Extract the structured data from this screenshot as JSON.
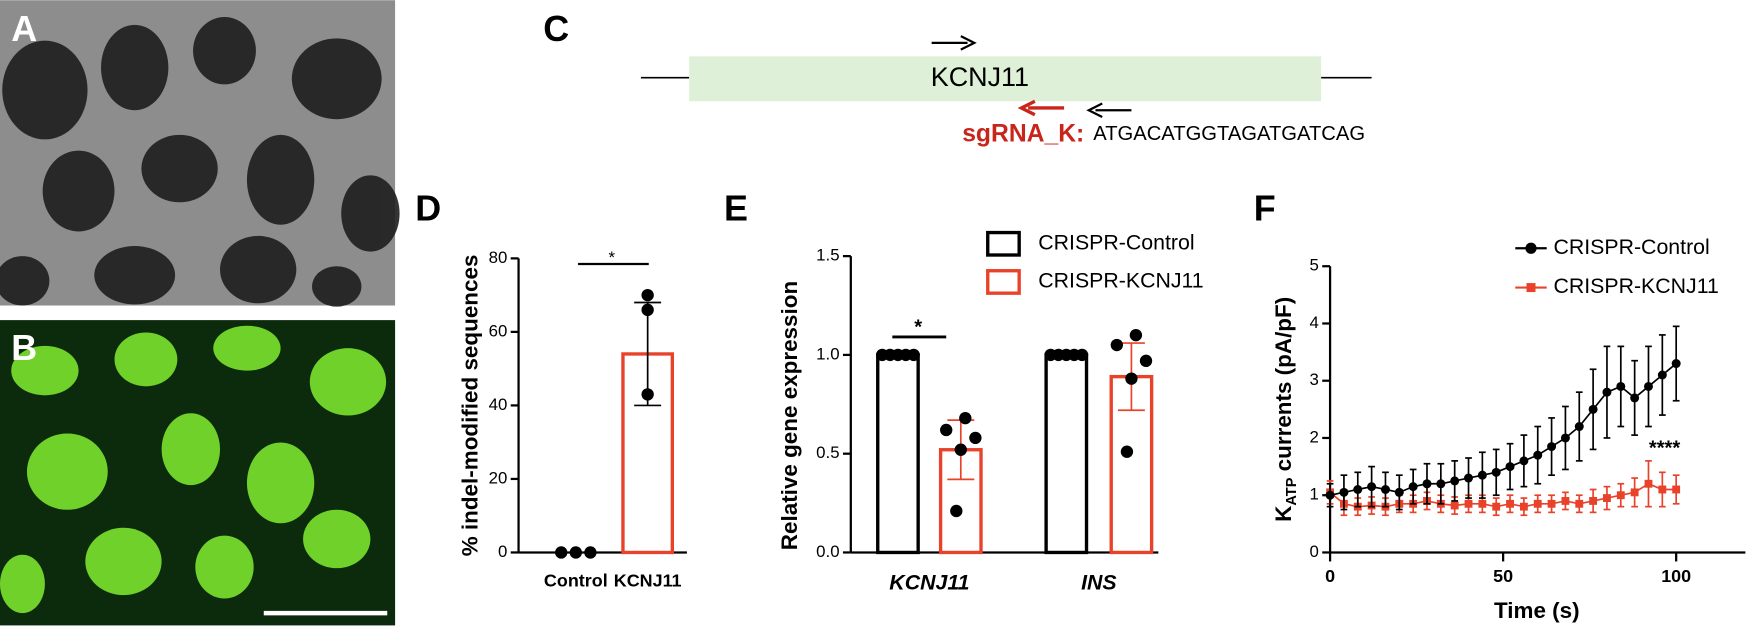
{
  "panel_labels": [
    "A",
    "B",
    "C",
    "D",
    "E",
    "F"
  ],
  "diagram": {
    "gene": "KCNJ11",
    "guide_label": "sgRNA_K:",
    "sequence": "ATGACATGGTAGATGATCAG"
  },
  "chart_data": [
    {
      "type": "bar",
      "ylabel": "% indel-modified sequences",
      "categories": [
        "Control",
        "KCNJ11"
      ],
      "values": [
        0,
        54
      ],
      "errors": [
        0,
        14
      ],
      "points": [
        [
          0,
          0,
          0
        ],
        [
          70,
          66,
          43
        ]
      ],
      "colors": [
        "#000000",
        "#e8432a"
      ],
      "ylim": [
        0,
        80
      ],
      "yticks": [
        0,
        20,
        40,
        60,
        80
      ],
      "annotation": "*"
    },
    {
      "type": "grouped_bar",
      "ylabel": "Relative gene expression",
      "categories": [
        "KCNJ11",
        "INS"
      ],
      "series": [
        {
          "name": "CRISPR-Control",
          "color": "#000000",
          "values": [
            1.0,
            1.0
          ],
          "errors": [
            0,
            0
          ],
          "points": [
            [
              1,
              1,
              1,
              1,
              1
            ],
            [
              1,
              1,
              1,
              1,
              1
            ]
          ]
        },
        {
          "name": "CRISPR-KCNJ11",
          "color": "#e8432a",
          "values": [
            0.52,
            0.89
          ],
          "errors": [
            0.15,
            0.17
          ],
          "points": [
            [
              0.68,
              0.62,
              0.58,
              0.52,
              0.21
            ],
            [
              1.1,
              1.05,
              0.97,
              0.88,
              0.51
            ]
          ]
        }
      ],
      "ylim": [
        0,
        1.5
      ],
      "yticks": [
        {
          "value": 0,
          "label": "0.0"
        },
        {
          "value": 0.5,
          "label": "0.5"
        },
        {
          "value": 1,
          "label": "1.0"
        },
        {
          "value": 1.5,
          "label": "1.5"
        }
      ],
      "annotation": "*"
    },
    {
      "type": "line",
      "xlabel": "Time (s)",
      "ylabel_main": "K",
      "ylabel_sub": "ATP",
      "ylabel_rest": " currents (pA/pF)",
      "x": [
        0,
        4,
        8,
        12,
        16,
        20,
        24,
        28,
        32,
        36,
        40,
        44,
        48,
        52,
        56,
        60,
        64,
        68,
        72,
        76,
        80,
        84,
        88,
        92,
        96,
        100
      ],
      "series": [
        {
          "name": "CRISPR-Control",
          "color": "#000000",
          "values": [
            1.0,
            1.05,
            1.1,
            1.15,
            1.1,
            1.05,
            1.15,
            1.2,
            1.2,
            1.25,
            1.3,
            1.35,
            1.4,
            1.5,
            1.6,
            1.7,
            1.85,
            2.0,
            2.2,
            2.5,
            2.8,
            2.9,
            2.7,
            2.9,
            3.1,
            3.3
          ],
          "errors": [
            0.2,
            0.3,
            0.3,
            0.35,
            0.3,
            0.3,
            0.3,
            0.35,
            0.35,
            0.35,
            0.35,
            0.4,
            0.4,
            0.4,
            0.45,
            0.5,
            0.5,
            0.55,
            0.6,
            0.7,
            0.8,
            0.7,
            0.65,
            0.7,
            0.7,
            0.65
          ]
        },
        {
          "name": "CRISPR-KCNJ11",
          "color": "#e8432a",
          "values": [
            1.05,
            0.85,
            0.8,
            0.82,
            0.8,
            0.85,
            0.85,
            0.9,
            0.85,
            0.82,
            0.85,
            0.85,
            0.8,
            0.85,
            0.8,
            0.85,
            0.85,
            0.9,
            0.85,
            0.9,
            0.95,
            1.0,
            1.05,
            1.2,
            1.1,
            1.1
          ],
          "errors": [
            0.2,
            0.2,
            0.15,
            0.15,
            0.15,
            0.15,
            0.15,
            0.15,
            0.15,
            0.15,
            0.15,
            0.15,
            0.15,
            0.15,
            0.15,
            0.15,
            0.15,
            0.15,
            0.15,
            0.2,
            0.2,
            0.2,
            0.25,
            0.4,
            0.3,
            0.25
          ]
        }
      ],
      "xlim": [
        0,
        120
      ],
      "xticks": [
        0,
        50,
        100
      ],
      "ylim": [
        0,
        5
      ],
      "yticks": [
        0,
        1,
        2,
        3,
        4,
        5
      ],
      "annotation": "****"
    }
  ]
}
